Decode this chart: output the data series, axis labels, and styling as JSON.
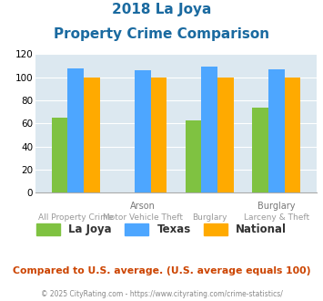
{
  "title_line1": "2018 La Joya",
  "title_line2": "Property Crime Comparison",
  "groups": [
    {
      "lajoya": 65,
      "texas": 108,
      "national": 100
    },
    {
      "lajoya": 0,
      "texas": 106,
      "national": 100
    },
    {
      "lajoya": 63,
      "texas": 109,
      "national": 100
    },
    {
      "lajoya": 74,
      "texas": 107,
      "national": 100
    }
  ],
  "top_labels": [
    "",
    "Arson",
    "",
    "Burglary"
  ],
  "bottom_labels": [
    "All Property Crime",
    "Motor Vehicle Theft",
    "Burglary",
    "Larceny & Theft"
  ],
  "color_lajoya": "#7fc241",
  "color_texas": "#4da6ff",
  "color_national": "#ffaa00",
  "bg_color": "#dce8f0",
  "ylim": [
    0,
    120
  ],
  "yticks": [
    0,
    20,
    40,
    60,
    80,
    100,
    120
  ],
  "legend_labels": [
    "La Joya",
    "Texas",
    "National"
  ],
  "footnote": "Compared to U.S. average. (U.S. average equals 100)",
  "copyright": "© 2025 CityRating.com - https://www.cityrating.com/crime-statistics/",
  "title_color": "#1a6aa0",
  "footnote_color": "#cc4400",
  "copyright_color": "#888888"
}
